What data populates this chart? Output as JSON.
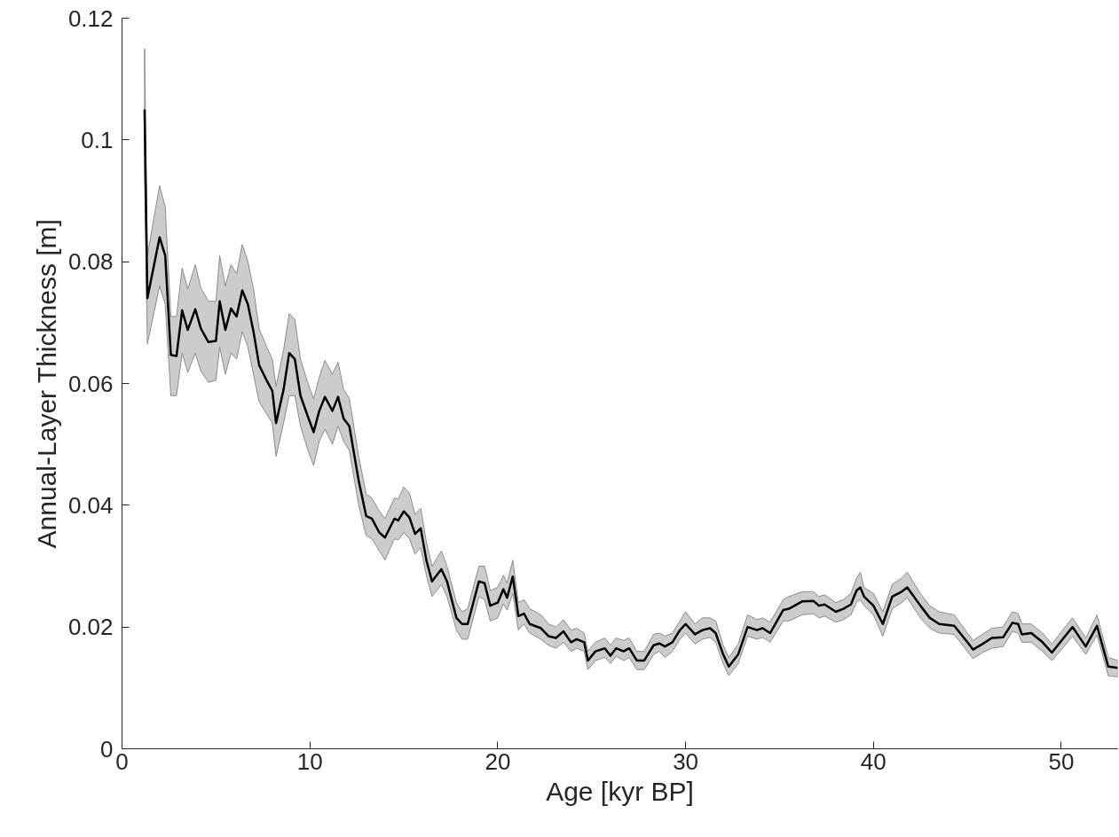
{
  "chart_data": {
    "type": "line",
    "xlabel": "Age [kyr BP]",
    "ylabel": "Annual-Layer Thickness [m]",
    "xlim": [
      0,
      53
    ],
    "ylim": [
      0,
      0.12
    ],
    "xticks": [
      0,
      10,
      20,
      30,
      40,
      50
    ],
    "yticks": [
      0,
      {
        "value": 0.02,
        "label": "0.02"
      },
      {
        "value": 0.04,
        "label": "0.04"
      },
      {
        "value": 0.06,
        "label": "0.06"
      },
      {
        "value": 0.08,
        "label": "0.08"
      },
      0.1,
      0.12
    ],
    "grid": false,
    "marker": "none",
    "line_style": "solid",
    "series": [
      {
        "color": "#000000",
        "x": [
          1.2,
          1.35,
          2.0,
          2.3,
          2.6,
          2.9,
          3.2,
          3.5,
          3.9,
          4.2,
          4.6,
          5.0,
          5.2,
          5.5,
          5.8,
          6.1,
          6.4,
          6.7,
          7.0,
          7.3,
          7.7,
          8.0,
          8.2,
          8.6,
          8.9,
          9.2,
          9.5,
          9.9,
          10.2,
          10.5,
          10.8,
          11.2,
          11.5,
          11.8,
          12.1,
          12.6,
          13.0,
          13.3,
          13.7,
          14.0,
          14.5,
          14.7,
          15.0,
          15.3,
          15.6,
          15.9,
          16.2,
          16.5,
          17.0,
          17.3,
          17.8,
          18.1,
          18.4,
          19.0,
          19.3,
          19.6,
          20.0,
          20.3,
          20.5,
          20.8,
          21.1,
          21.4,
          21.7,
          22.3,
          22.7,
          23.1,
          23.5,
          23.9,
          24.2,
          24.6,
          24.8,
          25.2,
          25.7,
          26.0,
          26.3,
          26.7,
          27.0,
          27.4,
          27.8,
          28.3,
          28.6,
          28.9,
          29.3,
          29.7,
          30.0,
          30.5,
          30.9,
          31.3,
          31.6,
          32.0,
          32.3,
          32.8,
          33.3,
          33.8,
          34.1,
          34.5,
          35.2,
          35.5,
          36.2,
          36.8,
          37.1,
          37.4,
          38.0,
          38.4,
          38.8,
          39.1,
          39.3,
          39.5,
          40.0,
          40.5,
          41.0,
          41.5,
          41.8,
          42.5,
          43.0,
          43.5,
          44.3,
          45.0,
          45.3,
          45.8,
          46.3,
          46.9,
          47.4,
          47.7,
          47.9,
          48.4,
          49.0,
          49.5,
          50.2,
          50.6,
          51.3,
          51.9,
          52.5,
          53.0
        ],
        "values": [
          0.105,
          0.074,
          0.084,
          0.081,
          0.0647,
          0.0645,
          0.072,
          0.0688,
          0.0722,
          0.069,
          0.0668,
          0.067,
          0.0735,
          0.0688,
          0.0723,
          0.071,
          0.0753,
          0.073,
          0.0685,
          0.063,
          0.0605,
          0.0588,
          0.0535,
          0.059,
          0.065,
          0.064,
          0.058,
          0.0545,
          0.052,
          0.0555,
          0.0578,
          0.0555,
          0.0578,
          0.0542,
          0.053,
          0.044,
          0.0382,
          0.0378,
          0.0355,
          0.0347,
          0.0378,
          0.0375,
          0.039,
          0.038,
          0.0353,
          0.0362,
          0.031,
          0.0275,
          0.0295,
          0.0275,
          0.0215,
          0.0205,
          0.0205,
          0.0275,
          0.0272,
          0.0235,
          0.024,
          0.0262,
          0.0248,
          0.0283,
          0.0218,
          0.0222,
          0.0205,
          0.0198,
          0.0185,
          0.0182,
          0.0193,
          0.0175,
          0.018,
          0.0175,
          0.0145,
          0.016,
          0.0165,
          0.0153,
          0.0165,
          0.016,
          0.0165,
          0.0145,
          0.0145,
          0.017,
          0.0173,
          0.0168,
          0.0175,
          0.0195,
          0.0205,
          0.0188,
          0.0195,
          0.0198,
          0.019,
          0.0155,
          0.0135,
          0.0155,
          0.02,
          0.0195,
          0.0198,
          0.019,
          0.0228,
          0.023,
          0.0242,
          0.0243,
          0.0235,
          0.0237,
          0.0225,
          0.023,
          0.0237,
          0.026,
          0.0265,
          0.025,
          0.0235,
          0.0205,
          0.025,
          0.0258,
          0.0265,
          0.0235,
          0.0215,
          0.0205,
          0.0202,
          0.0175,
          0.0163,
          0.0172,
          0.0182,
          0.0183,
          0.0207,
          0.0205,
          0.0188,
          0.019,
          0.0175,
          0.0158,
          0.0185,
          0.02,
          0.0168,
          0.0202,
          0.0135,
          0.0133
        ],
        "lower": [
          0.094,
          0.0665,
          0.076,
          0.073,
          0.058,
          0.058,
          0.065,
          0.0618,
          0.065,
          0.062,
          0.0602,
          0.0605,
          0.066,
          0.0615,
          0.065,
          0.064,
          0.0685,
          0.066,
          0.0615,
          0.057,
          0.055,
          0.0535,
          0.048,
          0.0535,
          0.058,
          0.058,
          0.053,
          0.049,
          0.0465,
          0.0505,
          0.0525,
          0.05,
          0.053,
          0.0505,
          0.049,
          0.04,
          0.035,
          0.0345,
          0.0325,
          0.031,
          0.0345,
          0.0343,
          0.0355,
          0.0345,
          0.032,
          0.033,
          0.0285,
          0.025,
          0.027,
          0.025,
          0.0195,
          0.018,
          0.018,
          0.025,
          0.0245,
          0.021,
          0.0215,
          0.0238,
          0.0228,
          0.0255,
          0.0195,
          0.0205,
          0.019,
          0.018,
          0.017,
          0.0165,
          0.0175,
          0.016,
          0.0165,
          0.016,
          0.013,
          0.0145,
          0.015,
          0.014,
          0.0152,
          0.0145,
          0.015,
          0.013,
          0.013,
          0.0155,
          0.016,
          0.015,
          0.016,
          0.018,
          0.019,
          0.0172,
          0.018,
          0.0183,
          0.0175,
          0.014,
          0.012,
          0.014,
          0.0185,
          0.018,
          0.0183,
          0.0175,
          0.021,
          0.021,
          0.022,
          0.0222,
          0.0215,
          0.0218,
          0.0208,
          0.0212,
          0.022,
          0.024,
          0.0245,
          0.0235,
          0.022,
          0.0185,
          0.023,
          0.024,
          0.0248,
          0.0215,
          0.0198,
          0.019,
          0.0188,
          0.016,
          0.0148,
          0.0158,
          0.0165,
          0.0168,
          0.0193,
          0.019,
          0.0175,
          0.0175,
          0.016,
          0.0145,
          0.017,
          0.0185,
          0.0155,
          0.0187,
          0.012,
          0.0118
        ],
        "upper": [
          0.115,
          0.081,
          0.0925,
          0.089,
          0.071,
          0.071,
          0.079,
          0.0755,
          0.0795,
          0.0757,
          0.0735,
          0.0735,
          0.081,
          0.076,
          0.0795,
          0.078,
          0.0828,
          0.08,
          0.0755,
          0.069,
          0.066,
          0.064,
          0.0595,
          0.0655,
          0.0715,
          0.0705,
          0.064,
          0.06,
          0.0575,
          0.061,
          0.0638,
          0.0615,
          0.0635,
          0.059,
          0.0575,
          0.048,
          0.0418,
          0.0412,
          0.039,
          0.0378,
          0.0412,
          0.041,
          0.043,
          0.042,
          0.0385,
          0.0395,
          0.034,
          0.03,
          0.0325,
          0.03,
          0.024,
          0.0225,
          0.023,
          0.03,
          0.03,
          0.026,
          0.0265,
          0.0285,
          0.0272,
          0.031,
          0.024,
          0.0245,
          0.023,
          0.022,
          0.0205,
          0.02,
          0.0212,
          0.0195,
          0.0198,
          0.019,
          0.016,
          0.0175,
          0.0182,
          0.017,
          0.0182,
          0.0178,
          0.0182,
          0.016,
          0.016,
          0.0188,
          0.019,
          0.0185,
          0.019,
          0.021,
          0.0225,
          0.0205,
          0.0215,
          0.0215,
          0.021,
          0.017,
          0.015,
          0.0172,
          0.022,
          0.0212,
          0.0215,
          0.0208,
          0.0245,
          0.025,
          0.0258,
          0.0258,
          0.025,
          0.0253,
          0.024,
          0.0245,
          0.0255,
          0.028,
          0.029,
          0.0265,
          0.0255,
          0.0225,
          0.027,
          0.028,
          0.029,
          0.0255,
          0.0235,
          0.0225,
          0.022,
          0.019,
          0.0178,
          0.0188,
          0.0198,
          0.02,
          0.0225,
          0.0222,
          0.0205,
          0.0205,
          0.019,
          0.0172,
          0.02,
          0.0215,
          0.0182,
          0.022,
          0.015,
          0.0145
        ]
      }
    ]
  }
}
